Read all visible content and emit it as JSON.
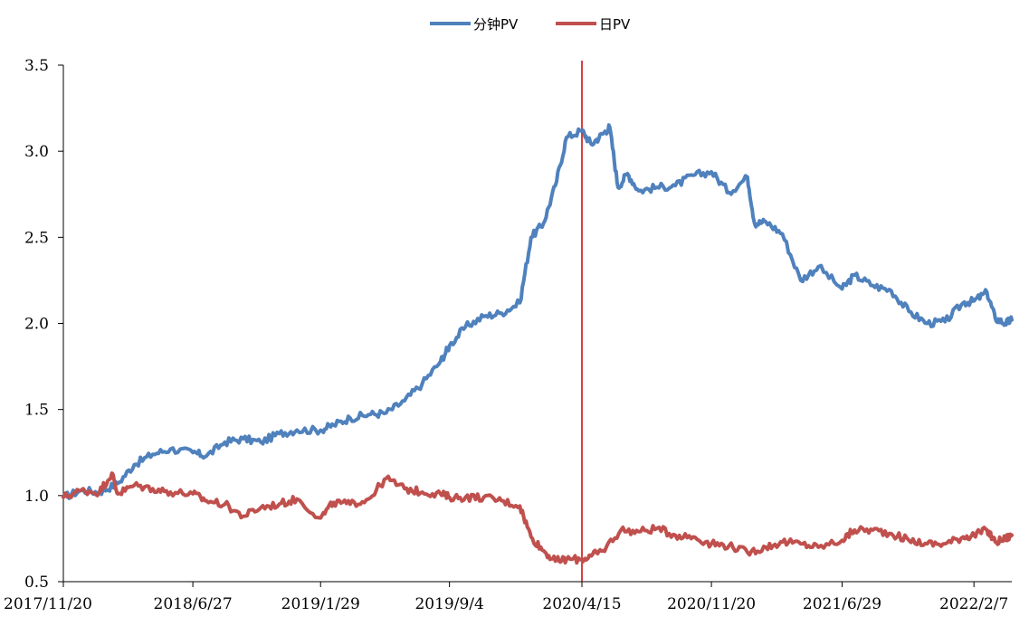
{
  "chart_data": {
    "type": "line",
    "title": "",
    "xlabel": "",
    "ylabel": "",
    "ylim": [
      0.5,
      3.5
    ],
    "yticks": [
      "0.5",
      "1.0",
      "1.5",
      "2.0",
      "2.5",
      "3.0",
      "3.5"
    ],
    "xticks": [
      "2017/11/20",
      "2018/6/27",
      "2019/1/29",
      "2019/9/4",
      "2020/4/15",
      "2020/11/20",
      "2021/6/29",
      "2022/2/7"
    ],
    "xlim": [
      "2017/11/20",
      "2022/4/12"
    ],
    "grid": false,
    "legend_position": "top-center",
    "vertical_marker": {
      "x": "2020/4/15",
      "color": "#cc0000"
    },
    "series": [
      {
        "name": "分钟PV",
        "color": "#4f81bd",
        "x": [
          "2017/11/20",
          "2017/12/20",
          "2018/1/20",
          "2018/2/20",
          "2018/3/20",
          "2018/4/20",
          "2018/5/20",
          "2018/6/27",
          "2018/7/20",
          "2018/8/20",
          "2018/9/20",
          "2018/10/20",
          "2018/11/20",
          "2018/12/20",
          "2019/1/29",
          "2019/2/20",
          "2019/3/20",
          "2019/4/20",
          "2019/5/20",
          "2019/6/20",
          "2019/7/20",
          "2019/8/20",
          "2019/9/4",
          "2019/10/1",
          "2019/11/1",
          "2019/12/1",
          "2020/1/1",
          "2020/1/20",
          "2020/2/10",
          "2020/3/1",
          "2020/3/20",
          "2020/4/15",
          "2020/5/1",
          "2020/5/20",
          "2020/6/1",
          "2020/6/15",
          "2020/7/1",
          "2020/7/20",
          "2020/8/20",
          "2020/9/20",
          "2020/10/20",
          "2020/11/20",
          "2020/12/20",
          "2021/1/20",
          "2021/2/1",
          "2021/2/20",
          "2021/3/20",
          "2021/4/20",
          "2021/5/20",
          "2021/6/29",
          "2021/7/20",
          "2021/8/20",
          "2021/9/20",
          "2021/10/20",
          "2021/11/20",
          "2021/12/20",
          "2022/1/20",
          "2022/2/7",
          "2022/3/1",
          "2022/3/15",
          "2022/4/1",
          "2022/4/12"
        ],
        "values": [
          0.99,
          1.03,
          1.02,
          1.07,
          1.18,
          1.24,
          1.27,
          1.25,
          1.23,
          1.31,
          1.33,
          1.31,
          1.36,
          1.38,
          1.38,
          1.41,
          1.45,
          1.47,
          1.48,
          1.55,
          1.65,
          1.78,
          1.87,
          1.98,
          2.04,
          2.06,
          2.12,
          2.5,
          2.58,
          2.8,
          3.08,
          3.12,
          3.04,
          3.1,
          3.14,
          2.79,
          2.87,
          2.77,
          2.79,
          2.8,
          2.86,
          2.88,
          2.76,
          2.85,
          2.58,
          2.59,
          2.52,
          2.25,
          2.33,
          2.2,
          2.28,
          2.22,
          2.19,
          2.07,
          2.0,
          2.01,
          2.12,
          2.13,
          2.18,
          2.03,
          2.0,
          2.02
        ]
      },
      {
        "name": "日PV",
        "color": "#c0504d",
        "x": [
          "2017/11/20",
          "2017/12/20",
          "2018/1/20",
          "2018/2/10",
          "2018/2/20",
          "2018/3/20",
          "2018/4/20",
          "2018/5/20",
          "2018/6/27",
          "2018/7/20",
          "2018/8/20",
          "2018/9/20",
          "2018/10/20",
          "2018/11/20",
          "2018/12/20",
          "2019/1/29",
          "2019/2/20",
          "2019/3/20",
          "2019/4/20",
          "2019/5/20",
          "2019/6/20",
          "2019/7/20",
          "2019/8/20",
          "2019/9/4",
          "2019/10/1",
          "2019/11/1",
          "2019/12/1",
          "2020/1/1",
          "2020/1/20",
          "2020/2/10",
          "2020/3/1",
          "2020/3/20",
          "2020/4/15",
          "2020/5/1",
          "2020/5/20",
          "2020/6/20",
          "2020/7/20",
          "2020/8/20",
          "2020/9/20",
          "2020/10/20",
          "2020/11/20",
          "2020/12/20",
          "2021/1/20",
          "2021/2/20",
          "2021/3/20",
          "2021/4/20",
          "2021/5/20",
          "2021/6/29",
          "2021/7/20",
          "2021/8/20",
          "2021/9/20",
          "2021/10/20",
          "2021/11/20",
          "2021/12/20",
          "2022/1/20",
          "2022/2/7",
          "2022/3/1",
          "2022/3/15",
          "2022/4/1",
          "2022/4/12"
        ],
        "values": [
          0.99,
          1.03,
          1.02,
          1.13,
          1.01,
          1.06,
          1.04,
          1.02,
          1.01,
          0.97,
          0.95,
          0.88,
          0.93,
          0.95,
          0.98,
          0.87,
          0.96,
          0.95,
          0.98,
          1.1,
          1.04,
          1.02,
          1.01,
          0.99,
          0.99,
          0.99,
          0.97,
          0.94,
          0.76,
          0.68,
          0.62,
          0.63,
          0.63,
          0.65,
          0.68,
          0.8,
          0.79,
          0.81,
          0.77,
          0.76,
          0.72,
          0.71,
          0.67,
          0.7,
          0.73,
          0.72,
          0.7,
          0.74,
          0.8,
          0.8,
          0.78,
          0.74,
          0.72,
          0.72,
          0.76,
          0.77,
          0.8,
          0.73,
          0.75,
          0.77
        ]
      }
    ]
  }
}
